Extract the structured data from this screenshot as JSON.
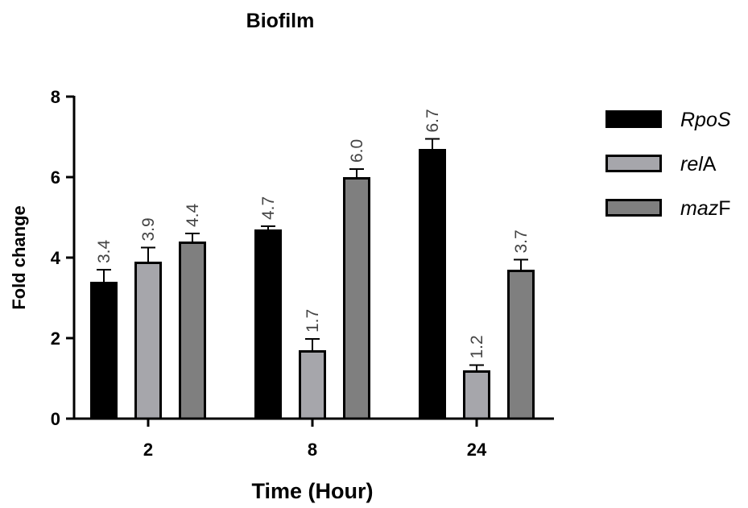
{
  "chart_data": {
    "type": "bar",
    "title": "Biofilm",
    "xlabel": "Time (Hour)",
    "ylabel": "Fold change",
    "categories": [
      "2",
      "8",
      "24"
    ],
    "ylim": [
      0,
      8
    ],
    "yticks": [
      0,
      2,
      4,
      6,
      8
    ],
    "series": [
      {
        "name": "RpoS",
        "legend_parts": [
          {
            "text": "RpoS",
            "italic": true
          }
        ],
        "color": "#000000",
        "values": [
          3.4,
          4.7,
          6.7
        ],
        "errors": [
          0.3,
          0.08,
          0.25
        ],
        "labels": [
          "3.4",
          "4.7",
          "6.7"
        ]
      },
      {
        "name": "relA",
        "legend_parts": [
          {
            "text": "rel",
            "italic": true
          },
          {
            "text": "A",
            "italic": false
          }
        ],
        "color": "#a6a6ab",
        "values": [
          3.9,
          1.7,
          1.2
        ],
        "errors": [
          0.35,
          0.28,
          0.13
        ],
        "labels": [
          "3.9",
          "1.7",
          "1.2"
        ]
      },
      {
        "name": "mazF",
        "legend_parts": [
          {
            "text": "maz",
            "italic": true
          },
          {
            "text": "F",
            "italic": false
          }
        ],
        "color": "#7f7f7f",
        "values": [
          4.4,
          6.0,
          3.7
        ],
        "errors": [
          0.2,
          0.2,
          0.25
        ],
        "labels": [
          "4.4",
          "6.0",
          "3.7"
        ]
      }
    ],
    "legend_position": "right",
    "grid": false
  }
}
